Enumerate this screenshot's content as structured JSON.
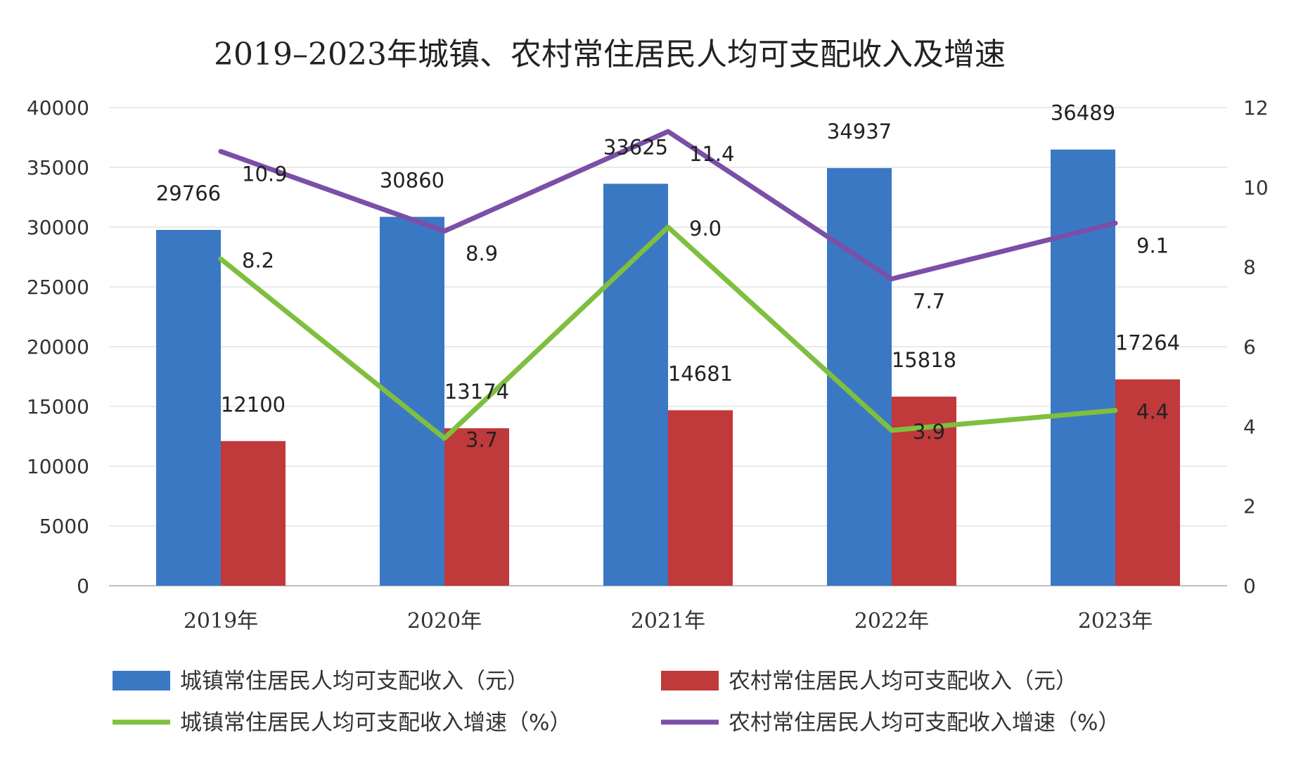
{
  "chart_data": {
    "type": "bar",
    "title": "2019–2023年城镇、农村常住居民人均可支配收入及增速",
    "categories": [
      "2019年",
      "2020年",
      "2021年",
      "2022年",
      "2023年"
    ],
    "series": [
      {
        "name": "城镇常住居民人均可支配收入（元）",
        "type": "bar",
        "axis": "left",
        "color": "#3b78c4",
        "values": [
          29766,
          30860,
          33625,
          34937,
          36489
        ]
      },
      {
        "name": "农村常住居民人均可支配收入（元）",
        "type": "bar",
        "axis": "left",
        "color": "#c0393b",
        "values": [
          12100,
          13174,
          14681,
          15818,
          17264
        ]
      },
      {
        "name": "城镇常住居民人均可支配收入增速（%）",
        "type": "line",
        "axis": "right",
        "color": "#7fbf3f",
        "values": [
          8.2,
          3.7,
          9.0,
          3.9,
          4.4
        ]
      },
      {
        "name": "农村常住居民人均可支配收入增速（%）",
        "type": "line",
        "axis": "right",
        "color": "#7b4fa8",
        "values": [
          10.9,
          8.9,
          11.4,
          7.7,
          9.1
        ]
      }
    ],
    "y_left": {
      "min": 0,
      "max": 40000,
      "ticks": [
        "0",
        "5000",
        "10000",
        "15000",
        "20000",
        "25000",
        "30000",
        "35000",
        "40000"
      ]
    },
    "y_right": {
      "min": 0,
      "max": 12,
      "ticks": [
        "0",
        "2",
        "4",
        "6",
        "8",
        "10",
        "12"
      ]
    },
    "bar_labels": {
      "urban": [
        "29766",
        "30860",
        "33625",
        "34937",
        "36489"
      ],
      "rural": [
        "12100",
        "13174",
        "14681",
        "15818",
        "17264"
      ]
    },
    "line_labels": {
      "urban_growth": [
        "8.2",
        "3.7",
        "9.0",
        "3.9",
        "4.4"
      ],
      "rural_growth": [
        "10.9",
        "8.9",
        "11.4",
        "7.7",
        "9.1"
      ]
    },
    "grid": true,
    "legend_position": "bottom"
  }
}
